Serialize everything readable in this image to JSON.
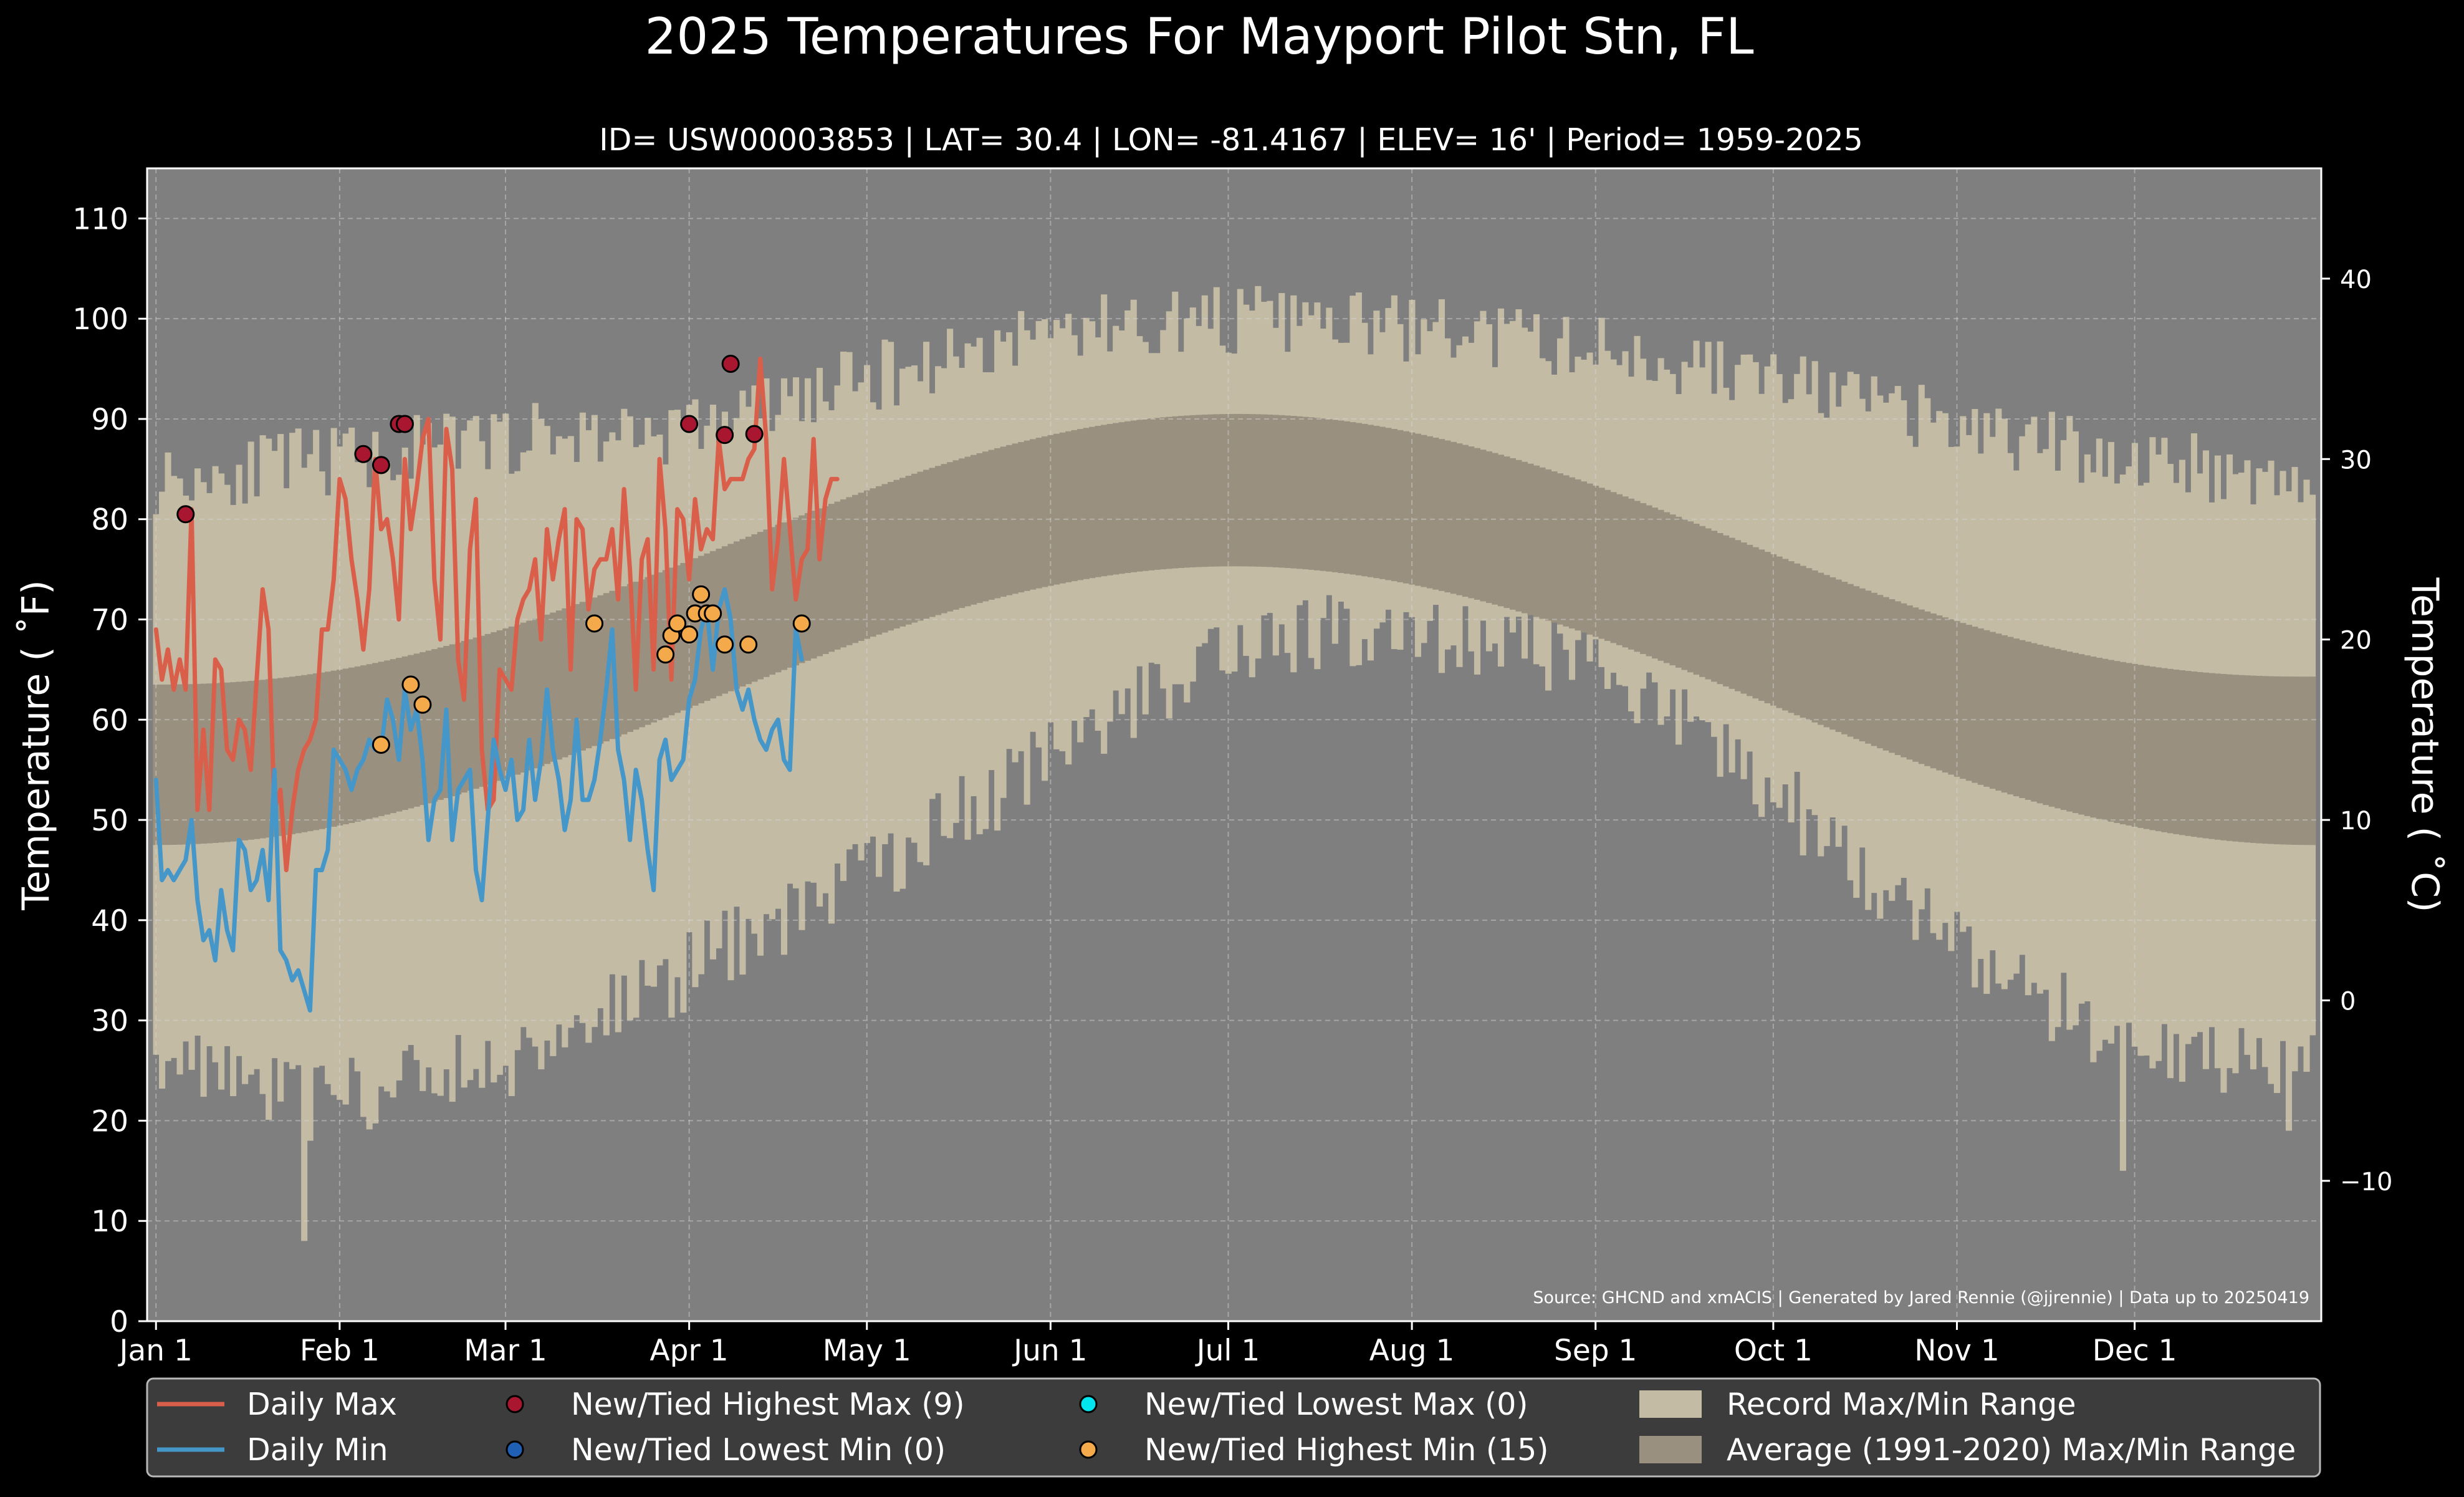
{
  "chart_data": {
    "type": "line",
    "title": "2025 Temperatures For Mayport Pilot Stn, FL",
    "subtitle": "ID= USW00003853 | LAT= 30.4 | LON= -81.4167 | ELEV= 16' | Period= 1959-2025",
    "ylabel_left": "Temperature ($^\\circ$F)",
    "ylabel_left_display": "Temperature ( ˚F)",
    "ylabel_right_display": "Temperature ( ˚C)",
    "source": "Source: GHCND and xmACIS | Generated by Jared Rennie (@jjrennie) | Data up to 20250419",
    "ylim_f": [
      0,
      115
    ],
    "xlim_doy": [
      -1.5,
      365.5
    ],
    "yticks_f": [
      0,
      10,
      20,
      30,
      40,
      50,
      60,
      70,
      80,
      90,
      100,
      110
    ],
    "yticks_c": [
      -10,
      0,
      10,
      20,
      30,
      40
    ],
    "month_ticks": [
      {
        "label": "Jan 1",
        "doy": 0
      },
      {
        "label": "Feb 1",
        "doy": 31
      },
      {
        "label": "Mar 1",
        "doy": 59
      },
      {
        "label": "Apr 1",
        "doy": 90
      },
      {
        "label": "May 1",
        "doy": 120
      },
      {
        "label": "Jun 1",
        "doy": 151
      },
      {
        "label": "Jul 1",
        "doy": 181
      },
      {
        "label": "Aug 1",
        "doy": 212
      },
      {
        "label": "Sep 1",
        "doy": 243
      },
      {
        "label": "Oct 1",
        "doy": 273
      },
      {
        "label": "Nov 1",
        "doy": 304
      },
      {
        "label": "Dec 1",
        "doy": 334
      }
    ],
    "grid": true,
    "legend_placement": "bottom",
    "colors": {
      "daily_max": "#d95f4b",
      "daily_min": "#4596c9",
      "record_band": "#c4bba5",
      "average_band": "#9a9080",
      "plot_bg": "#7f7f7f",
      "new_high_max": "#a8172f",
      "new_low_min": "#1f5fb4",
      "new_low_max": "#00e5ee",
      "new_high_min": "#f4a94a"
    },
    "normals": {
      "avg_max_f": {
        "jan": 63.5,
        "jul_peak": 90.5,
        "dec": 64.3
      },
      "avg_min_f": {
        "jan": 47.5,
        "jul_peak": 75.3,
        "dec": 47.5
      }
    },
    "record_envelope_keypoints": {
      "doy": [
        0,
        31,
        59,
        90,
        120,
        151,
        181,
        212,
        243,
        273,
        304,
        334,
        364
      ],
      "record_max_f": [
        84,
        86,
        88,
        89,
        94,
        99,
        100,
        99,
        97,
        94,
        89,
        86,
        84
      ],
      "record_min_f": [
        27,
        22,
        26,
        35,
        45,
        56,
        68,
        69,
        66,
        53,
        37,
        27,
        26
      ]
    },
    "record_min_outliers": [
      {
        "doy": 25,
        "value": 8
      },
      {
        "doy": 26,
        "value": 18
      },
      {
        "doy": 332,
        "value": 15
      },
      {
        "doy": 360,
        "value": 19
      }
    ],
    "series": [
      {
        "name": "Daily Max",
        "start_doy": 0,
        "values": [
          69,
          64,
          67,
          63,
          66,
          63,
          81,
          51,
          59,
          51,
          66,
          65,
          57,
          56,
          60,
          59,
          55,
          64,
          73,
          69,
          51,
          53,
          45,
          51,
          55,
          57,
          58,
          60,
          69,
          69,
          74,
          84,
          82,
          76,
          72,
          67,
          73,
          86,
          79,
          80,
          76,
          70,
          86,
          79,
          83,
          88,
          90,
          74,
          68,
          89,
          85,
          66,
          62,
          77,
          82,
          57,
          51,
          52,
          65,
          64,
          63,
          70,
          72,
          73,
          76,
          68,
          79,
          74,
          78,
          81,
          65,
          80,
          79,
          71,
          75,
          76,
          76,
          79,
          72,
          83,
          75,
          63,
          76,
          78,
          65,
          86,
          79,
          64,
          81,
          80,
          74,
          82,
          77,
          79,
          78,
          88,
          83,
          84,
          84,
          84,
          86,
          87,
          96,
          88,
          73,
          78,
          86,
          79,
          72,
          76,
          77,
          88,
          76,
          82,
          84,
          84
        ],
        "source": "estimated"
      },
      {
        "name": "Daily Min",
        "start_doy": 0,
        "values": [
          54,
          44,
          45,
          44,
          45,
          46,
          50,
          42,
          38,
          39,
          36,
          43,
          39,
          37,
          48,
          47,
          43,
          44,
          47,
          42,
          55,
          37,
          36,
          34,
          35,
          33,
          31,
          45,
          45,
          47,
          57,
          56,
          55,
          53,
          55,
          56,
          58,
          57,
          57,
          62,
          60,
          56,
          63,
          59,
          61,
          56,
          48,
          52,
          53,
          61,
          48,
          53,
          54,
          55,
          45,
          42,
          50,
          58,
          55,
          53,
          56,
          50,
          51,
          58,
          52,
          56,
          63,
          57,
          54,
          49,
          52,
          60,
          52,
          52,
          54,
          58,
          63,
          69,
          57,
          54,
          48,
          55,
          52,
          47,
          43,
          56,
          58,
          54,
          55,
          56,
          62,
          64,
          69,
          71,
          65,
          71,
          73,
          70,
          63,
          61,
          63,
          60,
          58,
          57,
          59,
          60,
          56,
          55,
          69,
          66
        ]
      }
    ],
    "record_markers": [
      {
        "name": "New/Tied Highest Max (9)",
        "points": [
          [
            5,
            80.5
          ],
          [
            35,
            86.5
          ],
          [
            38,
            85.4
          ],
          [
            41,
            89.5
          ],
          [
            42,
            89.5
          ],
          [
            90,
            89.5
          ],
          [
            96,
            88.4
          ],
          [
            97,
            95.5
          ],
          [
            101,
            88.5
          ]
        ]
      },
      {
        "name": "New/Tied Lowest Min (0)",
        "points": []
      },
      {
        "name": "New/Tied Lowest Max (0)",
        "points": []
      },
      {
        "name": "New/Tied Highest Min (15)",
        "points": [
          [
            38,
            57.5
          ],
          [
            43,
            63.5
          ],
          [
            45,
            61.5
          ],
          [
            74,
            69.6
          ],
          [
            86,
            66.5
          ],
          [
            87,
            68.4
          ],
          [
            88,
            69.6
          ],
          [
            90,
            68.5
          ],
          [
            91,
            70.6
          ],
          [
            92,
            72.5
          ],
          [
            93,
            70.6
          ],
          [
            94,
            70.6
          ],
          [
            96,
            67.5
          ],
          [
            100,
            67.5
          ],
          [
            109,
            69.6
          ]
        ]
      }
    ],
    "legend": [
      {
        "label": "Daily Max",
        "kind": "line",
        "color": "#d95f4b"
      },
      {
        "label": "Daily Min",
        "kind": "line",
        "color": "#4596c9"
      },
      {
        "label": "New/Tied Highest Max (9)",
        "kind": "dot",
        "color": "#a8172f"
      },
      {
        "label": "New/Tied Lowest Min (0)",
        "kind": "dot",
        "color": "#1f5fb4"
      },
      {
        "label": "New/Tied Lowest Max (0)",
        "kind": "dot",
        "color": "#00e5ee"
      },
      {
        "label": "New/Tied Highest Min (15)",
        "kind": "dot",
        "color": "#f4a94a"
      },
      {
        "label": "Record Max/Min Range",
        "kind": "patch",
        "color": "#c4bba5"
      },
      {
        "label": "Average (1991-2020) Max/Min Range",
        "kind": "patch",
        "color": "#9a9080"
      }
    ]
  }
}
